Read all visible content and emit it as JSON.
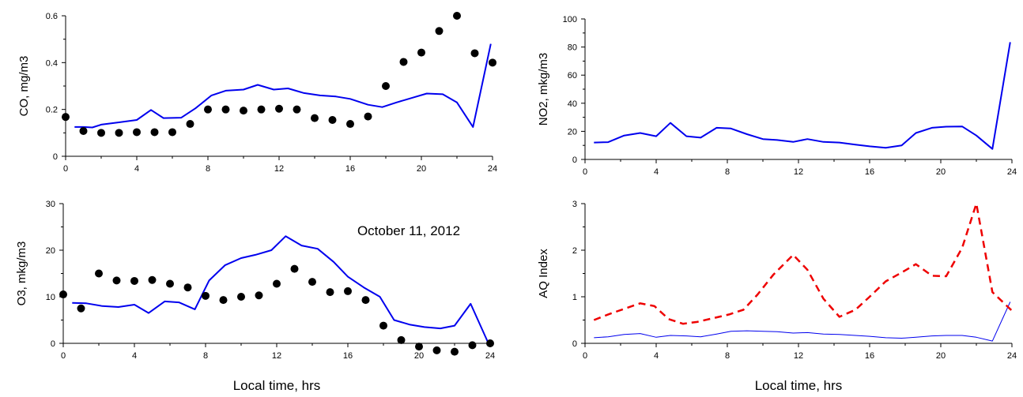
{
  "annotation": "October 11, 2012",
  "chart_data": [
    {
      "type": "line",
      "ylabel": "CO, mg/m3",
      "xlabel": "",
      "xlim": [
        0,
        24
      ],
      "ylim": [
        0,
        0.6
      ],
      "xticks": [
        "0",
        "4",
        "8",
        "12",
        "16",
        "20",
        "24"
      ],
      "yticks": [
        "0",
        "0.2",
        "0.4",
        "0.6"
      ],
      "series": [
        {
          "kind": "line",
          "color": "#0000ee",
          "dash": "",
          "width": 2,
          "x": [
            0.5,
            1,
            1.5,
            2,
            3,
            4,
            4.8,
            5.5,
            6.5,
            7.3,
            8.2,
            9,
            10,
            10.8,
            11.7,
            12.5,
            13.4,
            14.3,
            15.2,
            16,
            17,
            17.8,
            18.6,
            19.5,
            20.3,
            21.2,
            22,
            22.9,
            23.9
          ],
          "y": [
            0.125,
            0.125,
            0.123,
            0.135,
            0.145,
            0.155,
            0.198,
            0.163,
            0.165,
            0.205,
            0.26,
            0.28,
            0.285,
            0.305,
            0.285,
            0.29,
            0.27,
            0.26,
            0.255,
            0.245,
            0.22,
            0.21,
            0.23,
            0.25,
            0.268,
            0.265,
            0.23,
            0.125,
            0.48
          ]
        },
        {
          "kind": "scatter",
          "color": "#000000",
          "x": [
            0,
            1,
            2,
            3,
            4,
            5,
            6,
            7,
            8,
            9,
            10,
            11,
            12,
            13,
            14,
            15,
            16,
            17,
            18,
            19,
            20,
            21,
            22,
            23,
            24
          ],
          "y": [
            0.168,
            0.108,
            0.1,
            0.1,
            0.103,
            0.103,
            0.103,
            0.138,
            0.2,
            0.2,
            0.195,
            0.2,
            0.203,
            0.2,
            0.163,
            0.155,
            0.138,
            0.17,
            0.3,
            0.403,
            0.443,
            0.535,
            0.6,
            0.44,
            0.4
          ]
        }
      ]
    },
    {
      "type": "line",
      "ylabel": "NO2, mkg/m3",
      "xlabel": "",
      "xlim": [
        0,
        24
      ],
      "ylim": [
        0,
        100
      ],
      "xticks": [
        "0",
        "4",
        "8",
        "12",
        "16",
        "20",
        "24"
      ],
      "yticks": [
        "0",
        "20",
        "40",
        "60",
        "80",
        "100"
      ],
      "series": [
        {
          "kind": "line",
          "color": "#0000ee",
          "dash": "",
          "width": 2,
          "x": [
            0.5,
            1.3,
            2.2,
            3.1,
            4,
            4.8,
            5.7,
            6.5,
            7.4,
            8.2,
            9.1,
            10,
            10.8,
            11.7,
            12.5,
            13.4,
            14.3,
            15.2,
            16,
            16.9,
            17.8,
            18.6,
            19.5,
            20.3,
            21.2,
            22,
            22.9,
            23.9
          ],
          "y": [
            12,
            12.3,
            17,
            18.8,
            16.5,
            26,
            16.5,
            15.5,
            22.5,
            22,
            18,
            14.5,
            13.8,
            12.5,
            14.5,
            12.5,
            12,
            10.5,
            9.3,
            8.3,
            10,
            18.8,
            22.5,
            23.3,
            23.5,
            17,
            7.5,
            83.5
          ]
        }
      ]
    },
    {
      "type": "line",
      "ylabel": "O3, mkg/m3",
      "xlabel": "Local time, hrs",
      "xlim": [
        0,
        24
      ],
      "ylim": [
        0,
        30
      ],
      "xticks": [
        "0",
        "4",
        "8",
        "12",
        "16",
        "20",
        "24"
      ],
      "yticks": [
        "0",
        "10",
        "20",
        "30"
      ],
      "series": [
        {
          "kind": "line",
          "color": "#0000ee",
          "dash": "",
          "width": 2,
          "x": [
            0.5,
            1.3,
            2.2,
            3.1,
            4,
            4.8,
            5.7,
            6.5,
            7.4,
            8.2,
            9.1,
            10,
            10.8,
            11.7,
            12.5,
            13.4,
            14.3,
            15.2,
            16,
            16.9,
            17.8,
            18.6,
            19.5,
            20.3,
            21.2,
            22,
            22.9,
            23.9
          ],
          "y": [
            8.7,
            8.6,
            8,
            7.8,
            8.3,
            6.5,
            9,
            8.8,
            7.3,
            13.5,
            16.8,
            18.3,
            19,
            20,
            23,
            21,
            20.3,
            17.5,
            14.3,
            12,
            10,
            5,
            4,
            3.5,
            3.2,
            3.8,
            8.5,
            0
          ]
        },
        {
          "kind": "scatter",
          "color": "#000000",
          "x": [
            0,
            1,
            2,
            3,
            4,
            5,
            6,
            7,
            8,
            9,
            10,
            11,
            12,
            13,
            14,
            15,
            16,
            17,
            18,
            19,
            20,
            21,
            22,
            23,
            24
          ],
          "y": [
            10.5,
            7.5,
            15,
            13.5,
            13.4,
            13.6,
            12.8,
            12,
            10.2,
            9.3,
            10,
            10.3,
            12.8,
            16,
            13.2,
            11,
            11.2,
            9.3,
            3.8,
            0.7,
            -0.7,
            -1.5,
            -1.8,
            -0.4,
            0
          ]
        }
      ]
    },
    {
      "type": "line",
      "ylabel": "AQ Index",
      "xlabel": "Local time, hrs",
      "xlim": [
        0,
        24
      ],
      "ylim": [
        0,
        3
      ],
      "xticks": [
        "0",
        "4",
        "8",
        "12",
        "16",
        "20",
        "24"
      ],
      "yticks": [
        "0",
        "1",
        "2",
        "3"
      ],
      "series": [
        {
          "kind": "line",
          "color": "#0000ee",
          "dash": "",
          "width": 1,
          "x": [
            0.5,
            1.3,
            2.2,
            3.1,
            4,
            4.8,
            5.7,
            6.5,
            7.4,
            8.2,
            9.1,
            10,
            10.8,
            11.7,
            12.5,
            13.4,
            14.3,
            15.2,
            16,
            16.9,
            17.8,
            18.6,
            19.5,
            20.3,
            21.2,
            22,
            22.9,
            23.9
          ],
          "y": [
            0.12,
            0.14,
            0.19,
            0.21,
            0.13,
            0.17,
            0.16,
            0.14,
            0.2,
            0.26,
            0.27,
            0.26,
            0.25,
            0.22,
            0.23,
            0.2,
            0.19,
            0.17,
            0.15,
            0.12,
            0.11,
            0.13,
            0.16,
            0.17,
            0.17,
            0.13,
            0.05,
            0.89
          ]
        },
        {
          "kind": "line",
          "color": "#ee0000",
          "dash": "9,6",
          "width": 2.5,
          "x": [
            0.5,
            1.3,
            2.2,
            3.1,
            3.9,
            4.7,
            5.5,
            6.3,
            7.3,
            8.1,
            8.9,
            9.7,
            10.6,
            11.7,
            12.5,
            13.4,
            14.3,
            15.2,
            16,
            16.9,
            17.8,
            18.6,
            19.5,
            20.3,
            21.2,
            22,
            22.9,
            24
          ],
          "y": [
            0.5,
            0.62,
            0.74,
            0.86,
            0.8,
            0.52,
            0.42,
            0.46,
            0.55,
            0.62,
            0.72,
            1.05,
            1.48,
            1.9,
            1.58,
            0.96,
            0.57,
            0.72,
            1.0,
            1.33,
            1.52,
            1.7,
            1.45,
            1.44,
            2.05,
            3.0,
            1.1,
            0.7
          ]
        }
      ]
    }
  ]
}
